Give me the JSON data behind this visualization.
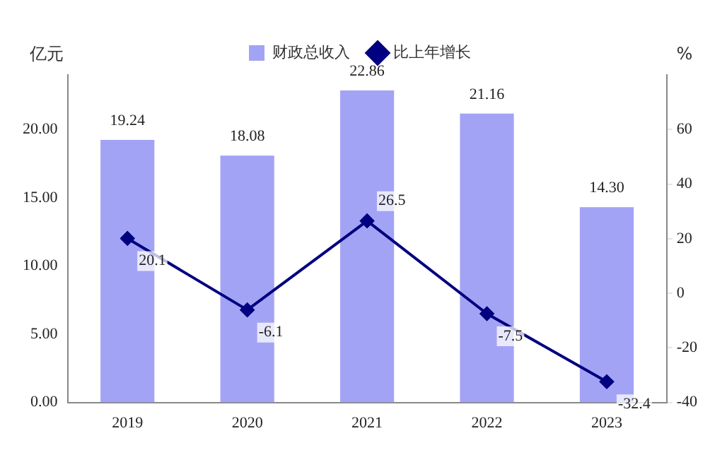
{
  "chart_data": {
    "type": "bar",
    "categories": [
      "2019",
      "2020",
      "2021",
      "2022",
      "2023"
    ],
    "ylabel": "亿元",
    "y2label": "%",
    "series": [
      {
        "name": "财政总收入",
        "color": "#a3a3f5",
        "values": [
          19.24,
          18.08,
          22.86,
          21.16,
          14.3
        ],
        "value_labels": [
          "19.24",
          "18.08",
          "22.86",
          "21.16",
          "14.30"
        ]
      },
      {
        "name": "比上年增长",
        "type": "line",
        "axis": "y2",
        "color": "#000080",
        "values": [
          20.1,
          -6.1,
          26.5,
          -7.5,
          -32.4
        ],
        "value_labels": [
          "20.1",
          "-6.1",
          "26.5",
          "-7.5",
          "-32.4"
        ]
      }
    ],
    "ylim": [
      0,
      24
    ],
    "yticks": [
      {
        "value": 0,
        "label": "0.00"
      },
      {
        "value": 5,
        "label": "5.00"
      },
      {
        "value": 10,
        "label": "10.00"
      },
      {
        "value": 15,
        "label": "15.00"
      },
      {
        "value": 20,
        "label": "20.00"
      }
    ],
    "y2lim": [
      -40,
      80
    ],
    "y2ticks": [
      -40,
      -20,
      0,
      20,
      40,
      60
    ],
    "grid": false,
    "legend": "top",
    "marker": "diamond",
    "line_style": "solid"
  }
}
